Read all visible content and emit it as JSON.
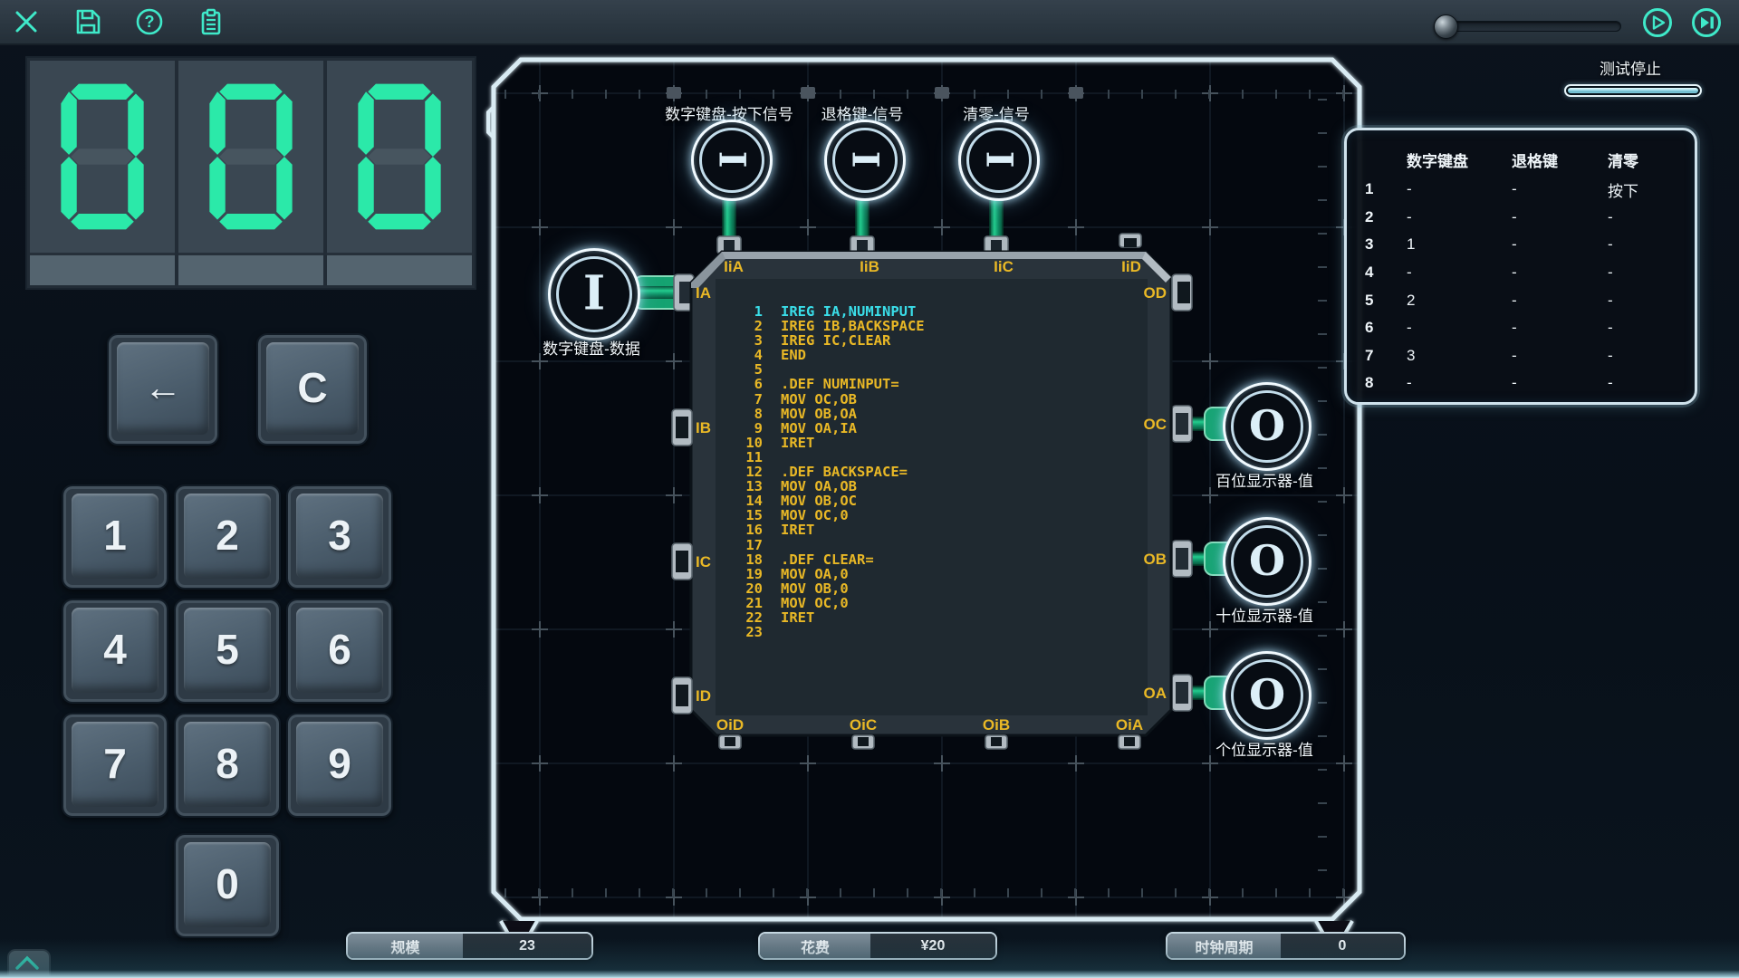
{
  "toolbar": {
    "icons": [
      "close",
      "save",
      "help",
      "clipboard"
    ],
    "slider": {
      "value": 0
    },
    "play_label": "play",
    "step_label": "step-forward"
  },
  "display": {
    "value": "000"
  },
  "keypad": {
    "backspace_label": "←",
    "clear_label": "C",
    "digits": [
      "1",
      "2",
      "3",
      "4",
      "5",
      "6",
      "7",
      "8",
      "9",
      "0"
    ]
  },
  "test_panel": {
    "status_label": "测试停止",
    "progress_percent": 100
  },
  "results_table": {
    "headers": [
      "数字键盘",
      "退格键",
      "清零"
    ],
    "rows": [
      [
        "1",
        "-",
        "-",
        "按下"
      ],
      [
        "2",
        "-",
        "-",
        "-"
      ],
      [
        "3",
        "1",
        "-",
        "-"
      ],
      [
        "4",
        "-",
        "-",
        "-"
      ],
      [
        "5",
        "2",
        "-",
        "-"
      ],
      [
        "6",
        "-",
        "-",
        "-"
      ],
      [
        "7",
        "3",
        "-",
        "-"
      ],
      [
        "8",
        "-",
        "-",
        "-"
      ]
    ]
  },
  "canvas": {
    "top_nodes": [
      {
        "label": "数字键盘-按下信号",
        "glyph": "I"
      },
      {
        "label": "退格键-信号",
        "glyph": "I"
      },
      {
        "label": "清零-信号",
        "glyph": "I"
      }
    ],
    "left_node": {
      "label": "数字键盘-数据",
      "glyph": "I"
    },
    "right_nodes": [
      {
        "label": "百位显示器-值",
        "glyph": "O"
      },
      {
        "label": "十位显示器-值",
        "glyph": "O"
      },
      {
        "label": "个位显示器-值",
        "glyph": "O"
      }
    ],
    "chip": {
      "ports": {
        "top": [
          "IiA",
          "IiB",
          "IiC",
          "IiD"
        ],
        "left": [
          "IA",
          "IB",
          "IC",
          "ID"
        ],
        "right": [
          "OD",
          "OC",
          "OB",
          "OA"
        ],
        "bottom": [
          "OiD",
          "OiC",
          "OiB",
          "OiA"
        ]
      }
    },
    "editor": {
      "lines": [
        {
          "n": "1",
          "text": "IREG IA,NUMINPUT",
          "hl": true
        },
        {
          "n": "2",
          "text": "IREG IB,BACKSPACE"
        },
        {
          "n": "3",
          "text": "IREG IC,CLEAR"
        },
        {
          "n": "4",
          "text": "END"
        },
        {
          "n": "5",
          "text": ""
        },
        {
          "n": "6",
          "text": ".DEF NUMINPUT="
        },
        {
          "n": "7",
          "text": "MOV OC,OB"
        },
        {
          "n": "8",
          "text": "MOV OB,OA"
        },
        {
          "n": "9",
          "text": "MOV OA,IA"
        },
        {
          "n": "10",
          "text": "IRET"
        },
        {
          "n": "11",
          "text": ""
        },
        {
          "n": "12",
          "text": ".DEF BACKSPACE="
        },
        {
          "n": "13",
          "text": "MOV OA,OB"
        },
        {
          "n": "14",
          "text": "MOV OB,OC"
        },
        {
          "n": "15",
          "text": "MOV OC,0"
        },
        {
          "n": "16",
          "text": "IRET"
        },
        {
          "n": "17",
          "text": ""
        },
        {
          "n": "18",
          "text": ".DEF CLEAR="
        },
        {
          "n": "19",
          "text": "MOV OA,0"
        },
        {
          "n": "20",
          "text": "MOV OB,0"
        },
        {
          "n": "21",
          "text": "MOV OC,0"
        },
        {
          "n": "22",
          "text": "IRET"
        },
        {
          "n": "23",
          "text": ""
        }
      ]
    }
  },
  "status_bar": {
    "items": [
      {
        "label": "规模",
        "value": "23"
      },
      {
        "label": "花费",
        "value": "¥20"
      },
      {
        "label": "时钟周期",
        "value": "0"
      }
    ]
  },
  "colors": {
    "accent": "#3FE9C9",
    "segment_lit": "#2BE9A9",
    "segment_unlit": "#47555F",
    "port_label": "#E9B826",
    "code_text": "#E9B826",
    "code_highlight": "#3ADEE9",
    "wire_green": "#1EC287"
  }
}
